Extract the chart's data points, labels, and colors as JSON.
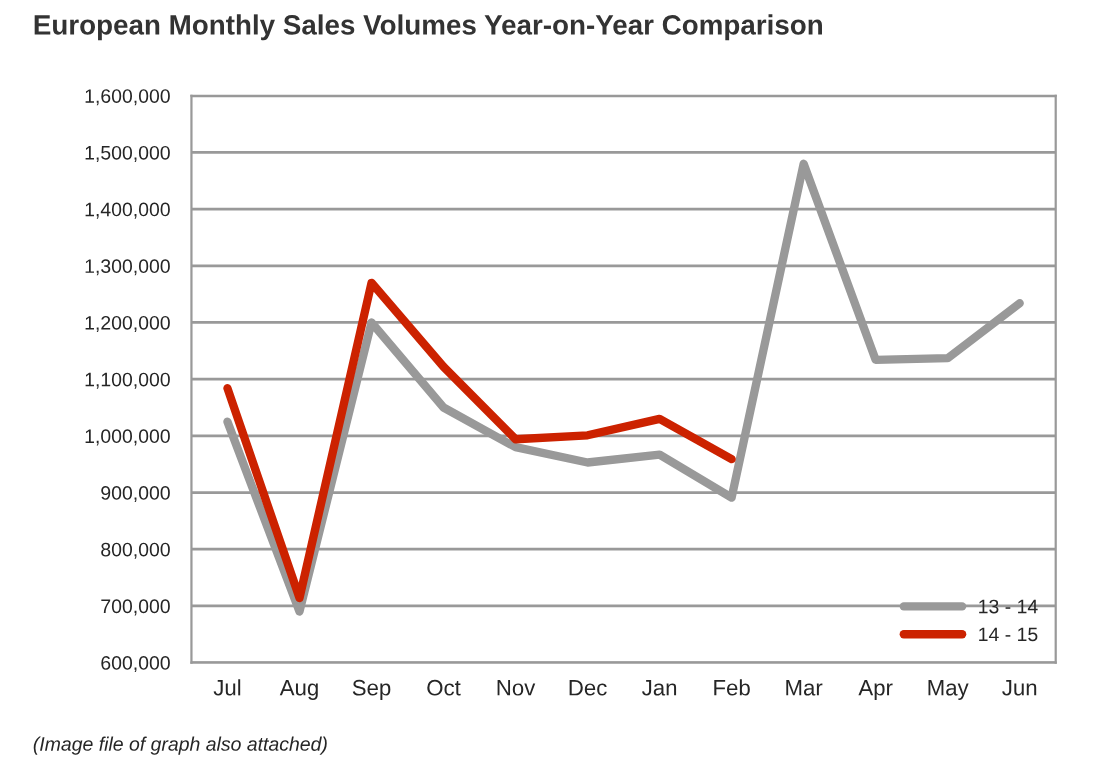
{
  "chart_data": {
    "type": "line",
    "title": "European Monthly Sales Volumes Year-on-Year Comparison",
    "categories": [
      "Jul",
      "Aug",
      "Sep",
      "Oct",
      "Nov",
      "Dec",
      "Jan",
      "Feb",
      "Mar",
      "Apr",
      "May",
      "Jun"
    ],
    "series": [
      {
        "name": "13 - 14",
        "color": "#999999",
        "values": [
          1025000,
          690000,
          1200000,
          1050000,
          980000,
          953000,
          967000,
          891000,
          1480000,
          1134000,
          1137000,
          1234000
        ]
      },
      {
        "name": "14 - 15",
        "color": "#cc2200",
        "values": [
          1084000,
          714000,
          1270000,
          1122000,
          994000,
          1001000,
          1030000,
          959000,
          null,
          null,
          null,
          null
        ]
      }
    ],
    "ylim": [
      600000,
      1600000
    ],
    "yticks": [
      {
        "value": 600000,
        "label": "600,000"
      },
      {
        "value": 700000,
        "label": "700,000"
      },
      {
        "value": 800000,
        "label": "800,000"
      },
      {
        "value": 900000,
        "label": "900,000"
      },
      {
        "value": 1000000,
        "label": "1,000,000"
      },
      {
        "value": 1100000,
        "label": "1,100,000"
      },
      {
        "value": 1200000,
        "label": "1,200,000"
      },
      {
        "value": 1300000,
        "label": "1,300,000"
      },
      {
        "value": 1400000,
        "label": "1,400,000"
      },
      {
        "value": 1500000,
        "label": "1,500,000"
      },
      {
        "value": 1600000,
        "label": "1,600,000"
      }
    ],
    "grid": "y",
    "legend": "bottom right",
    "marker": "none",
    "line_style": "solid",
    "annotations": [
      "(Image file of graph also attached)"
    ]
  }
}
